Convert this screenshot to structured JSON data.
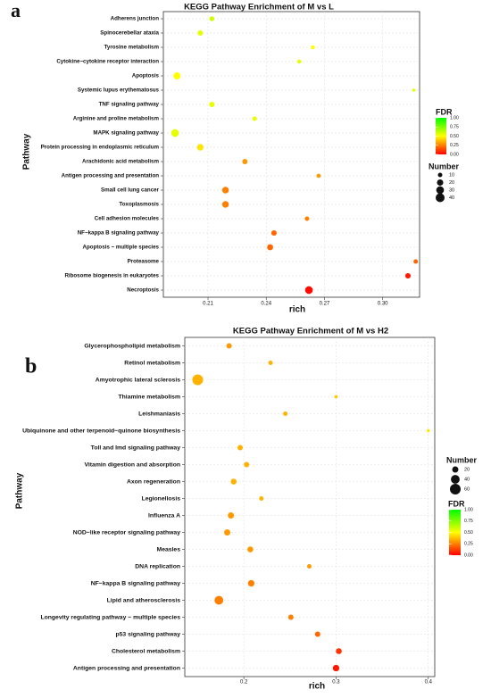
{
  "chart_data": [
    {
      "type": "scatter",
      "panel": "a",
      "title": "KEGG Pathway Enrichment of M vs L",
      "x_label": "rich",
      "y_label": "Pathway",
      "categories": [
        "Adherens junction",
        "Spinocerebellar ataxia",
        "Tyrosine metabolism",
        "Cytokine−cytokine receptor interaction",
        "Apoptosis",
        "Systemic lupus erythematosus",
        "TNF signaling pathway",
        "Arginine and proline metabolism",
        "MAPK signaling pathway",
        "Protein processing in endoplasmic reticulum",
        "Arachidonic acid metabolism",
        "Antigen processing and presentation",
        "Small cell lung cancer",
        "Toxoplasmosis",
        "Cell adhesion molecules",
        "NF−kappa B signaling pathway",
        "Apoptosis − multiple species",
        "Proteasome",
        "Ribosome biogenesis in eukaryotes",
        "Necroptosis"
      ],
      "values": [
        0.212,
        0.206,
        0.264,
        0.257,
        0.194,
        0.316,
        0.212,
        0.234,
        0.193,
        0.206,
        0.229,
        0.267,
        0.219,
        0.219,
        0.261,
        0.244,
        0.242,
        0.317,
        0.313,
        0.262
      ],
      "number": [
        12,
        15,
        8,
        8,
        25,
        5,
        15,
        10,
        30,
        22,
        14,
        9,
        22,
        22,
        10,
        15,
        18,
        10,
        15,
        30
      ],
      "fdr": [
        0.6,
        0.55,
        0.5,
        0.55,
        0.5,
        0.55,
        0.55,
        0.55,
        0.55,
        0.45,
        0.3,
        0.3,
        0.25,
        0.25,
        0.25,
        0.2,
        0.2,
        0.2,
        0.05,
        0.02
      ],
      "xlim": [
        0.187,
        0.319
      ],
      "xticks": [
        0.21,
        0.24,
        0.27,
        {
          "value": 0.3,
          "label": "0.30"
        }
      ],
      "legend_fdr_title": "FDR",
      "fdr_lim": [
        0,
        1
      ],
      "fdr_ticks": [
        {
          "value": 1,
          "label": "1.00"
        },
        0.75,
        {
          "value": 0.5,
          "label": "0.50"
        },
        0.25,
        {
          "value": 0,
          "label": "0.00"
        }
      ],
      "legend_number_title": "Number",
      "number_ticks": [
        10,
        20,
        30,
        40
      ],
      "color_low": "#ff0000",
      "color_high": "#00ff00",
      "grid": true
    },
    {
      "type": "scatter",
      "panel": "b",
      "title": "KEGG Pathway Enrichment of M vs H2",
      "x_label": "rich",
      "y_label": "Pathway",
      "categories": [
        "Glycerophospholipid metabolism",
        "Retinol metabolism",
        "Amyotrophic lateral sclerosis",
        "Thiamine metabolism",
        "Leishmaniasis",
        "Ubiquinone and other terpenoid−quinone biosynthesis",
        "Toll and Imd signaling pathway",
        "Vitamin digestion and absorption",
        "Axon regeneration",
        "Legionellosis",
        "Influenza A",
        "NOD−like receptor signaling pathway",
        "Measles",
        "DNA replication",
        "NF−kappa B signaling pathway",
        "Lipid and atherosclerosis",
        "Longevity regulating pathway − multiple species",
        "p53 signaling pathway",
        "Cholesterol metabolism",
        "Antigen processing and presentation"
      ],
      "values": [
        0.184,
        0.229,
        0.15,
        0.3,
        0.245,
        0.4,
        0.196,
        0.203,
        0.189,
        0.219,
        0.186,
        0.182,
        0.207,
        0.271,
        0.208,
        0.173,
        0.251,
        0.28,
        0.303,
        0.3
      ],
      "number": [
        15,
        10,
        60,
        6,
        10,
        5,
        15,
        15,
        18,
        10,
        20,
        20,
        18,
        10,
        22,
        40,
        15,
        15,
        18,
        22
      ],
      "fdr": [
        0.3,
        0.35,
        0.35,
        0.4,
        0.35,
        0.45,
        0.35,
        0.35,
        0.35,
        0.35,
        0.3,
        0.3,
        0.3,
        0.3,
        0.25,
        0.25,
        0.25,
        0.2,
        0.1,
        0.05
      ],
      "xlim": [
        0.136,
        0.407
      ],
      "xticks": [
        0.2,
        0.3,
        0.4
      ],
      "legend_fdr_title": "FDR",
      "fdr_lim": [
        0,
        1
      ],
      "fdr_ticks": [
        {
          "value": 1,
          "label": "1.00"
        },
        0.75,
        {
          "value": 0.5,
          "label": "0.50"
        },
        0.25,
        {
          "value": 0,
          "label": "0.00"
        }
      ],
      "legend_number_title": "Number",
      "number_ticks": [
        20,
        40,
        60
      ],
      "color_low": "#ff0000",
      "color_high": "#00ff00",
      "grid": true
    }
  ]
}
